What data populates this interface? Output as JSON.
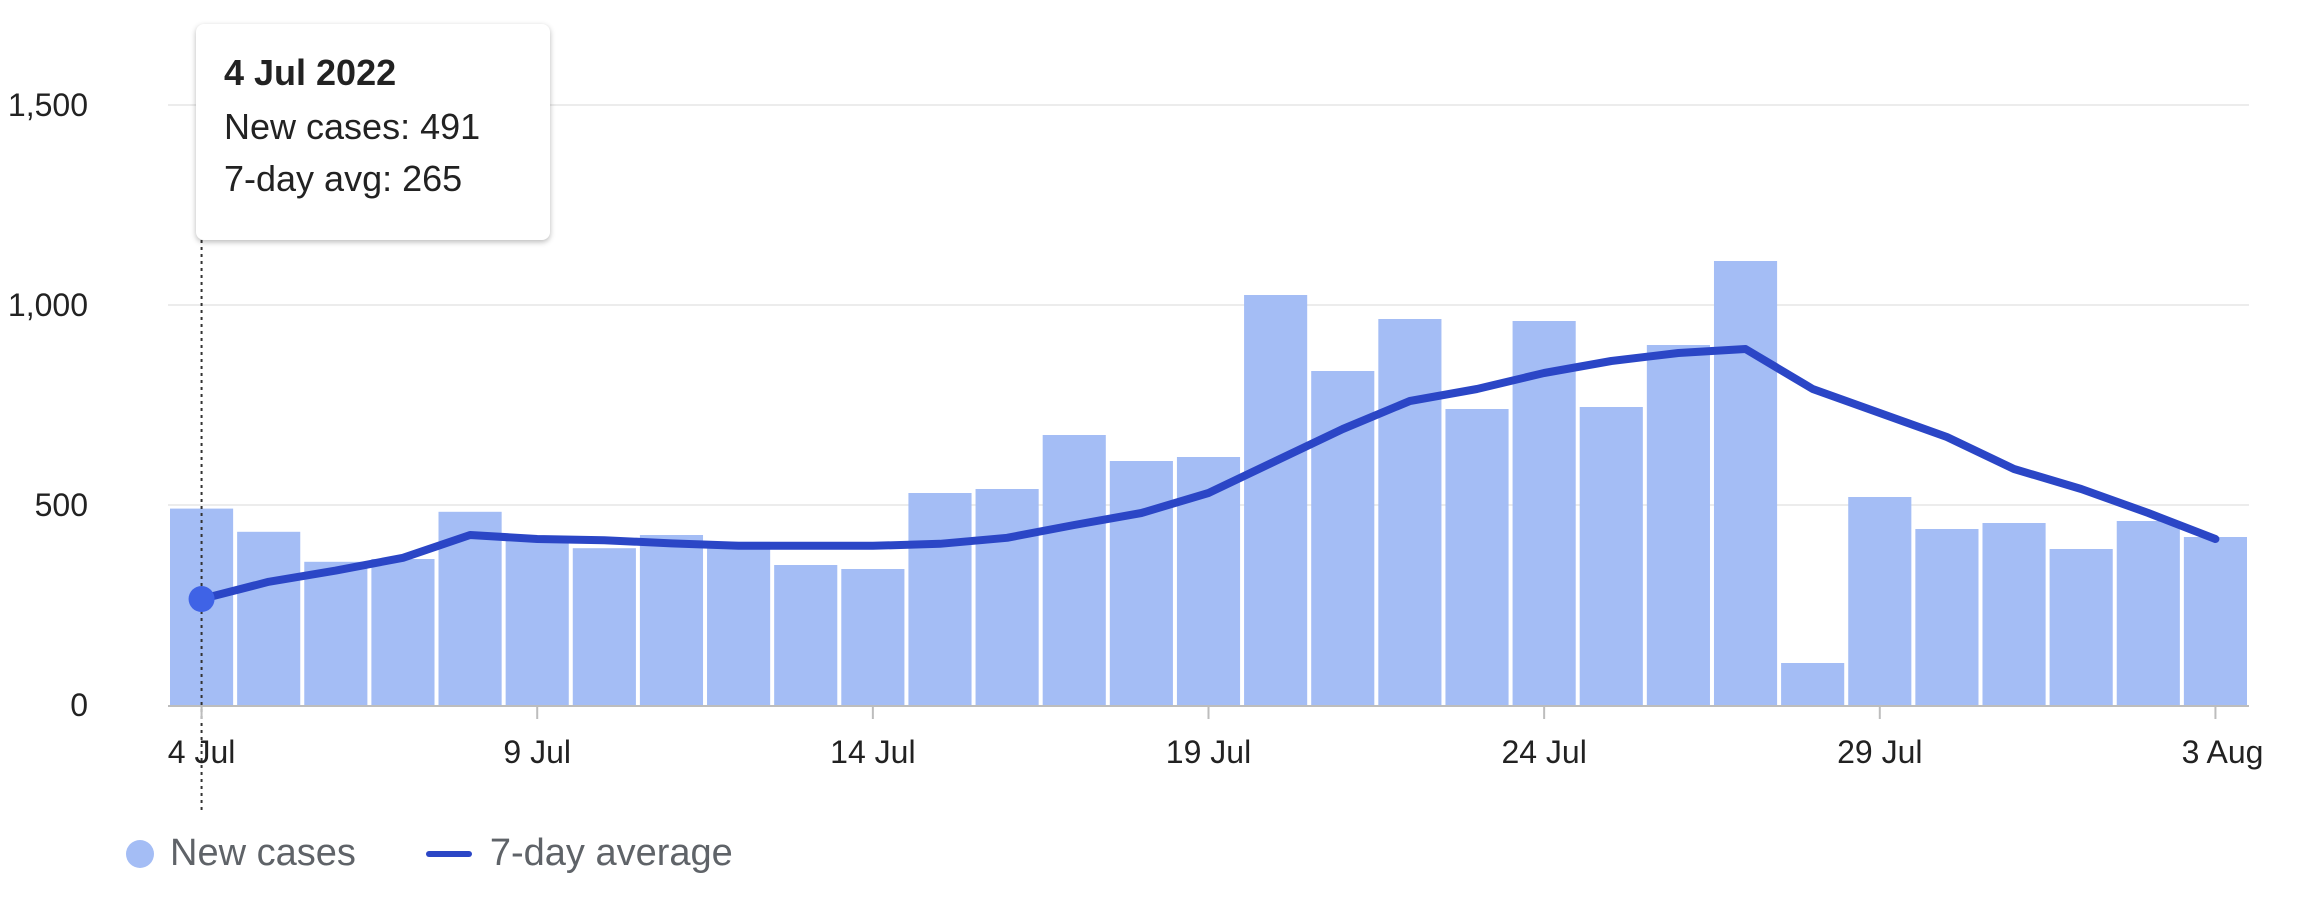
{
  "colors": {
    "bar": "#a4bdf5",
    "line": "#2b46c6",
    "grid": "#ececec",
    "axis": "#bdbdbd"
  },
  "tooltip": {
    "title": "4 Jul 2022",
    "new_cases_text": "New cases: 491",
    "avg_text": "7-day avg: 265"
  },
  "legend": {
    "bars_label": "New cases",
    "line_label": "7-day average"
  },
  "chart_data": {
    "type": "bar",
    "dates": [
      "4 Jul",
      "5 Jul",
      "6 Jul",
      "7 Jul",
      "8 Jul",
      "9 Jul",
      "10 Jul",
      "11 Jul",
      "12 Jul",
      "13 Jul",
      "14 Jul",
      "15 Jul",
      "16 Jul",
      "17 Jul",
      "18 Jul",
      "19 Jul",
      "20 Jul",
      "21 Jul",
      "22 Jul",
      "23 Jul",
      "24 Jul",
      "25 Jul",
      "26 Jul",
      "27 Jul",
      "28 Jul",
      "29 Jul",
      "30 Jul",
      "31 Jul",
      "1 Aug",
      "2 Aug",
      "3 Aug"
    ],
    "x_ticks": [
      "4 Jul",
      "9 Jul",
      "14 Jul",
      "19 Jul",
      "24 Jul",
      "29 Jul",
      "3 Aug"
    ],
    "y_ticks": [
      "0",
      "500",
      "1,000",
      "1,500"
    ],
    "ylim": [
      0,
      1500
    ],
    "grid": true,
    "legend_position": "bottom-left",
    "series": [
      {
        "name": "New cases",
        "type": "bar",
        "values": [
          491,
          433,
          358,
          365,
          483,
          415,
          392,
          425,
          408,
          350,
          340,
          530,
          540,
          675,
          610,
          620,
          1025,
          835,
          965,
          740,
          960,
          745,
          900,
          1110,
          105,
          520,
          440,
          455,
          390,
          460,
          420
        ]
      },
      {
        "name": "7-day average",
        "type": "line",
        "values": [
          265,
          308,
          336,
          368,
          425,
          415,
          412,
          404,
          398,
          398,
          398,
          403,
          418,
          450,
          480,
          530,
          610,
          690,
          760,
          790,
          830,
          860,
          880,
          890,
          790,
          730,
          670,
          590,
          540,
          480,
          415
        ]
      }
    ],
    "highlight_index": 0
  }
}
